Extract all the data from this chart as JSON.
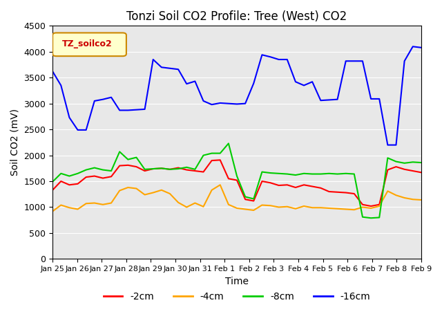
{
  "title": "Tonzi Soil CO2 Profile: Tree (West) CO2",
  "xlabel": "Time",
  "ylabel": "Soil CO2 (mV)",
  "ylim": [
    0,
    4500
  ],
  "background_color": "#e8e8e8",
  "legend_label": "TZ_soilco2",
  "x_tick_labels": [
    "Jan 25",
    "Jan 26",
    "Jan 27",
    "Jan 28",
    "Jan 29",
    "Jan 30",
    "Jan 31",
    "Feb 1",
    "Feb 2",
    "Feb 3",
    "Feb 4",
    "Feb 5",
    "Feb 6",
    "Feb 7",
    "Feb 8",
    "Feb 9"
  ],
  "series": {
    "-2cm": {
      "color": "#ff0000",
      "data": [
        1330,
        1500,
        1430,
        1450,
        1580,
        1600,
        1560,
        1590,
        1800,
        1810,
        1780,
        1700,
        1740,
        1750,
        1730,
        1760,
        1720,
        1700,
        1680,
        1900,
        1910,
        1550,
        1520,
        1150,
        1120,
        1500,
        1470,
        1420,
        1430,
        1380,
        1430,
        1400,
        1370,
        1300,
        1290,
        1280,
        1260,
        1050,
        1020,
        1050,
        1720,
        1780,
        1730,
        1700,
        1670
      ]
    },
    "-4cm": {
      "color": "#ffa500",
      "data": [
        920,
        1040,
        990,
        960,
        1070,
        1080,
        1050,
        1080,
        1320,
        1380,
        1360,
        1240,
        1280,
        1330,
        1260,
        1090,
        1000,
        1080,
        1010,
        1330,
        1430,
        1050,
        980,
        960,
        940,
        1040,
        1030,
        1000,
        1010,
        970,
        1020,
        990,
        990,
        980,
        970,
        960,
        950,
        1000,
        980,
        1020,
        1310,
        1230,
        1180,
        1150,
        1140
      ]
    },
    "-8cm": {
      "color": "#00cc00",
      "data": [
        1490,
        1650,
        1600,
        1650,
        1720,
        1760,
        1720,
        1700,
        2070,
        1920,
        1960,
        1730,
        1740,
        1750,
        1730,
        1740,
        1770,
        1730,
        2000,
        2040,
        2040,
        2230,
        1600,
        1200,
        1160,
        1680,
        1660,
        1650,
        1640,
        1620,
        1650,
        1640,
        1640,
        1650,
        1640,
        1650,
        1640,
        810,
        790,
        800,
        1950,
        1880,
        1850,
        1870,
        1860
      ]
    },
    "-16cm": {
      "color": "#0000ff",
      "data": [
        3620,
        3350,
        2730,
        2490,
        2490,
        3050,
        3080,
        3120,
        2870,
        2870,
        2880,
        2890,
        3850,
        3700,
        3680,
        3660,
        3380,
        3430,
        3050,
        2980,
        3010,
        3000,
        2990,
        3000,
        3390,
        3940,
        3900,
        3850,
        3850,
        3420,
        3350,
        3420,
        3060,
        3070,
        3080,
        3820,
        3820,
        3820,
        3090,
        3090,
        2200,
        2200,
        3820,
        4100,
        4080
      ]
    }
  }
}
